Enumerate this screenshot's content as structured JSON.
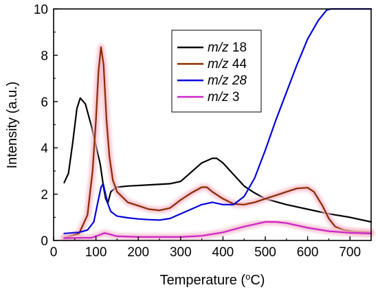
{
  "chart_data": {
    "type": "line",
    "title": "",
    "xlabel": "Temperature (",
    "xlabel_sup": "o",
    "xlabel_unit": "C)",
    "ylabel": "Intensity (a.u.)",
    "xlim": [
      0,
      750
    ],
    "ylim": [
      0,
      10
    ],
    "x_ticks": [
      0,
      100,
      200,
      300,
      400,
      500,
      600,
      700
    ],
    "y_ticks": [
      0,
      2,
      4,
      6,
      8,
      10
    ],
    "grid": false,
    "legend_position": "top-center",
    "series": [
      {
        "name": "m/z 18",
        "legend_italic": "m/z",
        "legend_suffix": " 18",
        "color": "#000000",
        "glow": false,
        "points": [
          [
            25,
            2.5
          ],
          [
            35,
            2.9
          ],
          [
            45,
            4.2
          ],
          [
            55,
            5.7
          ],
          [
            63,
            6.15
          ],
          [
            75,
            5.9
          ],
          [
            90,
            4.9
          ],
          [
            100,
            4.1
          ],
          [
            110,
            3.3
          ],
          [
            118,
            2.3
          ],
          [
            123,
            1.8
          ],
          [
            128,
            1.6
          ],
          [
            135,
            2.1
          ],
          [
            148,
            2.3
          ],
          [
            175,
            2.35
          ],
          [
            225,
            2.4
          ],
          [
            275,
            2.45
          ],
          [
            300,
            2.55
          ],
          [
            325,
            2.95
          ],
          [
            350,
            3.35
          ],
          [
            375,
            3.55
          ],
          [
            385,
            3.55
          ],
          [
            400,
            3.35
          ],
          [
            425,
            2.85
          ],
          [
            450,
            2.35
          ],
          [
            475,
            2.05
          ],
          [
            500,
            1.8
          ],
          [
            550,
            1.55
          ],
          [
            600,
            1.35
          ],
          [
            650,
            1.15
          ],
          [
            700,
            1.0
          ],
          [
            750,
            0.8
          ]
        ]
      },
      {
        "name": "m/z 44",
        "legend_italic": "m/z",
        "legend_suffix": " 44",
        "color": "#8b2a00",
        "glow": true,
        "points": [
          [
            25,
            0.12
          ],
          [
            60,
            0.3
          ],
          [
            80,
            1.1
          ],
          [
            92,
            3.0
          ],
          [
            100,
            5.2
          ],
          [
            106,
            7.3
          ],
          [
            112,
            8.35
          ],
          [
            118,
            7.6
          ],
          [
            125,
            5.2
          ],
          [
            132,
            3.6
          ],
          [
            140,
            2.6
          ],
          [
            150,
            2.1
          ],
          [
            175,
            1.65
          ],
          [
            200,
            1.5
          ],
          [
            225,
            1.35
          ],
          [
            250,
            1.3
          ],
          [
            275,
            1.4
          ],
          [
            300,
            1.75
          ],
          [
            325,
            2.05
          ],
          [
            350,
            2.3
          ],
          [
            362,
            2.3
          ],
          [
            375,
            2.1
          ],
          [
            400,
            1.8
          ],
          [
            425,
            1.58
          ],
          [
            450,
            1.55
          ],
          [
            475,
            1.65
          ],
          [
            500,
            1.8
          ],
          [
            525,
            1.95
          ],
          [
            550,
            2.1
          ],
          [
            575,
            2.25
          ],
          [
            600,
            2.28
          ],
          [
            615,
            2.1
          ],
          [
            635,
            1.5
          ],
          [
            650,
            0.95
          ],
          [
            665,
            0.6
          ],
          [
            685,
            0.45
          ],
          [
            710,
            0.38
          ],
          [
            750,
            0.35
          ]
        ]
      },
      {
        "name": "m/z 28",
        "legend_italic": "m/z",
        "legend_suffix": " 28",
        "legend_suffix_italic": true,
        "color": "#0000dd",
        "glow": false,
        "points": [
          [
            25,
            0.3
          ],
          [
            60,
            0.35
          ],
          [
            80,
            0.45
          ],
          [
            95,
            0.8
          ],
          [
            105,
            1.7
          ],
          [
            112,
            2.3
          ],
          [
            117,
            2.45
          ],
          [
            122,
            2.05
          ],
          [
            128,
            1.6
          ],
          [
            135,
            1.25
          ],
          [
            150,
            1.05
          ],
          [
            175,
            0.98
          ],
          [
            200,
            0.93
          ],
          [
            225,
            0.9
          ],
          [
            250,
            0.88
          ],
          [
            275,
            0.95
          ],
          [
            300,
            1.15
          ],
          [
            325,
            1.35
          ],
          [
            350,
            1.55
          ],
          [
            375,
            1.65
          ],
          [
            400,
            1.55
          ],
          [
            425,
            1.55
          ],
          [
            450,
            1.9
          ],
          [
            475,
            2.7
          ],
          [
            500,
            3.9
          ],
          [
            525,
            5.2
          ],
          [
            550,
            6.4
          ],
          [
            575,
            7.6
          ],
          [
            600,
            8.7
          ],
          [
            625,
            9.5
          ],
          [
            645,
            9.95
          ],
          [
            655,
            10
          ],
          [
            750,
            10
          ]
        ]
      },
      {
        "name": "m/z 3",
        "legend_italic": "m/z",
        "legend_suffix": " 3",
        "color": "#cc22cc",
        "glow": true,
        "points": [
          [
            25,
            0.1
          ],
          [
            90,
            0.12
          ],
          [
            110,
            0.25
          ],
          [
            120,
            0.32
          ],
          [
            130,
            0.28
          ],
          [
            150,
            0.18
          ],
          [
            200,
            0.15
          ],
          [
            300,
            0.15
          ],
          [
            350,
            0.2
          ],
          [
            400,
            0.35
          ],
          [
            450,
            0.6
          ],
          [
            500,
            0.8
          ],
          [
            525,
            0.8
          ],
          [
            550,
            0.75
          ],
          [
            600,
            0.55
          ],
          [
            650,
            0.4
          ],
          [
            700,
            0.33
          ],
          [
            750,
            0.3
          ]
        ]
      }
    ]
  }
}
